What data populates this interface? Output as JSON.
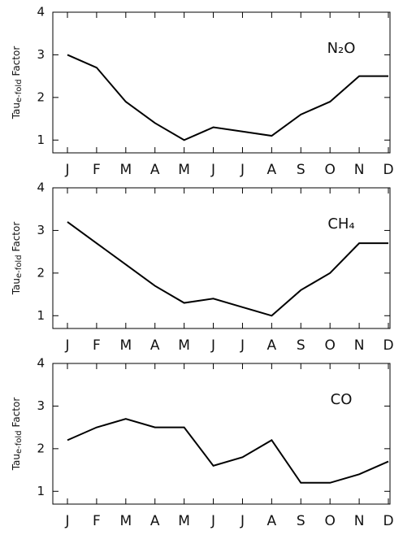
{
  "chart_data": [
    {
      "type": "line",
      "annotation": "N₂O",
      "ylabel": [
        "Tau",
        "e-fold",
        "Factor"
      ],
      "categories": [
        "J",
        "F",
        "M",
        "A",
        "M",
        "J",
        "J",
        "A",
        "S",
        "O",
        "N",
        "D"
      ],
      "values": [
        3.0,
        2.7,
        1.9,
        1.4,
        1.0,
        1.3,
        1.2,
        1.1,
        1.6,
        1.9,
        2.5,
        2.5
      ],
      "color": "#000000",
      "ylim": [
        0.7,
        4
      ],
      "yticks": [
        1,
        2,
        3,
        4
      ]
    },
    {
      "type": "line",
      "annotation": "CH₄",
      "ylabel": [
        "Tau",
        "e-fold",
        "Factor"
      ],
      "categories": [
        "J",
        "F",
        "M",
        "A",
        "M",
        "J",
        "J",
        "A",
        "S",
        "O",
        "N",
        "D"
      ],
      "values": [
        3.2,
        2.7,
        2.2,
        1.7,
        1.3,
        1.4,
        1.2,
        1.0,
        1.6,
        2.0,
        2.7,
        2.7
      ],
      "color": "#000000",
      "ylim": [
        0.7,
        4
      ],
      "yticks": [
        1,
        2,
        3,
        4
      ]
    },
    {
      "type": "line",
      "annotation": "CO",
      "ylabel": [
        "Tau",
        "e-fold",
        "Factor"
      ],
      "categories": [
        "J",
        "F",
        "M",
        "A",
        "M",
        "J",
        "J",
        "A",
        "S",
        "O",
        "N",
        "D"
      ],
      "values": [
        2.2,
        2.5,
        2.7,
        2.5,
        2.5,
        1.6,
        1.8,
        2.2,
        1.2,
        1.2,
        1.4,
        1.7
      ],
      "color": "#000000",
      "ylim": [
        0.7,
        4
      ],
      "yticks": [
        1,
        2,
        3,
        4
      ]
    }
  ]
}
